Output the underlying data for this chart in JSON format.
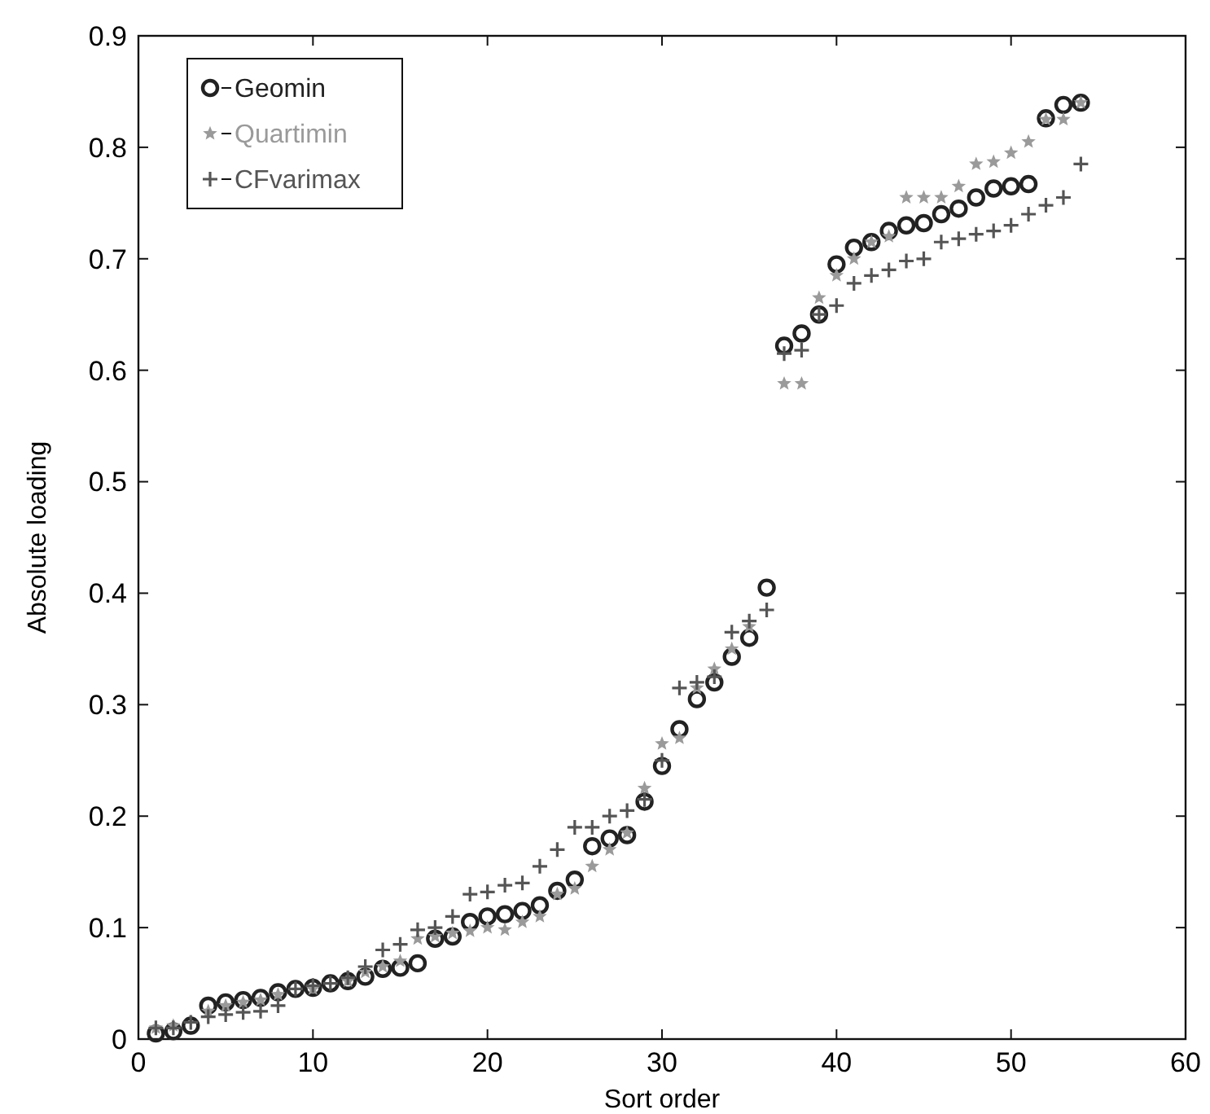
{
  "chart_data": {
    "type": "scatter",
    "xlabel": "Sort order",
    "ylabel": "Absolute loading",
    "x": [
      1,
      2,
      3,
      4,
      5,
      6,
      7,
      8,
      9,
      10,
      11,
      12,
      13,
      14,
      15,
      16,
      17,
      18,
      19,
      20,
      21,
      22,
      23,
      24,
      25,
      26,
      27,
      28,
      29,
      30,
      31,
      32,
      33,
      34,
      35,
      36,
      37,
      38,
      39,
      40,
      41,
      42,
      43,
      44,
      45,
      46,
      47,
      48,
      49,
      50,
      51,
      52,
      53,
      54
    ],
    "series": [
      {
        "name": "Geomin",
        "color": "#222222",
        "marker": "circle",
        "values": [
          0.005,
          0.007,
          0.012,
          0.03,
          0.033,
          0.035,
          0.037,
          0.042,
          0.045,
          0.046,
          0.05,
          0.052,
          0.056,
          0.063,
          0.064,
          0.068,
          0.09,
          0.092,
          0.105,
          0.11,
          0.112,
          0.115,
          0.12,
          0.133,
          0.143,
          0.173,
          0.18,
          0.183,
          0.213,
          0.245,
          0.278,
          0.305,
          0.32,
          0.343,
          0.36,
          0.405,
          0.622,
          0.633,
          0.65,
          0.695,
          0.71,
          0.715,
          0.725,
          0.73,
          0.732,
          0.74,
          0.745,
          0.755,
          0.763,
          0.765,
          0.767,
          0.826,
          0.838,
          0.84
        ]
      },
      {
        "name": "Quartimin",
        "color": "#9a9a9a",
        "marker": "star",
        "values": [
          0.01,
          0.012,
          null,
          0.025,
          0.03,
          0.033,
          0.035,
          0.04,
          null,
          0.045,
          null,
          0.052,
          0.06,
          0.065,
          0.07,
          0.09,
          0.092,
          0.095,
          0.097,
          0.1,
          0.098,
          0.105,
          0.11,
          0.13,
          0.135,
          0.155,
          0.17,
          0.185,
          0.225,
          0.265,
          0.27,
          0.315,
          0.332,
          0.35,
          0.37,
          null,
          0.588,
          0.588,
          0.665,
          0.685,
          0.7,
          0.715,
          0.72,
          0.755,
          0.755,
          0.755,
          0.765,
          0.785,
          0.787,
          0.795,
          0.805,
          0.825,
          0.825,
          0.84
        ]
      },
      {
        "name": "CFvarimax",
        "color": "#555555",
        "marker": "cross",
        "values": [
          0.01,
          0.01,
          0.015,
          0.02,
          0.022,
          0.024,
          0.025,
          0.03,
          0.045,
          0.048,
          0.05,
          0.055,
          0.065,
          0.08,
          0.085,
          0.098,
          0.1,
          0.11,
          0.13,
          0.132,
          0.138,
          0.14,
          0.155,
          0.17,
          0.19,
          0.19,
          0.2,
          0.205,
          0.215,
          0.25,
          0.315,
          0.32,
          0.325,
          0.365,
          0.375,
          0.385,
          0.615,
          0.618,
          0.65,
          0.658,
          0.678,
          0.685,
          0.69,
          0.698,
          0.7,
          0.715,
          0.718,
          0.722,
          0.725,
          0.73,
          0.74,
          0.748,
          0.755,
          0.785
        ]
      }
    ],
    "xlim": [
      0,
      60
    ],
    "xticks": [
      0,
      10,
      20,
      30,
      40,
      50,
      60
    ],
    "ylim": [
      0,
      0.9
    ],
    "yticks": [
      0,
      0.1,
      0.2,
      0.3,
      0.4,
      0.5,
      0.6,
      0.7,
      0.8,
      0.9
    ],
    "grid": false,
    "legend": "top left"
  }
}
